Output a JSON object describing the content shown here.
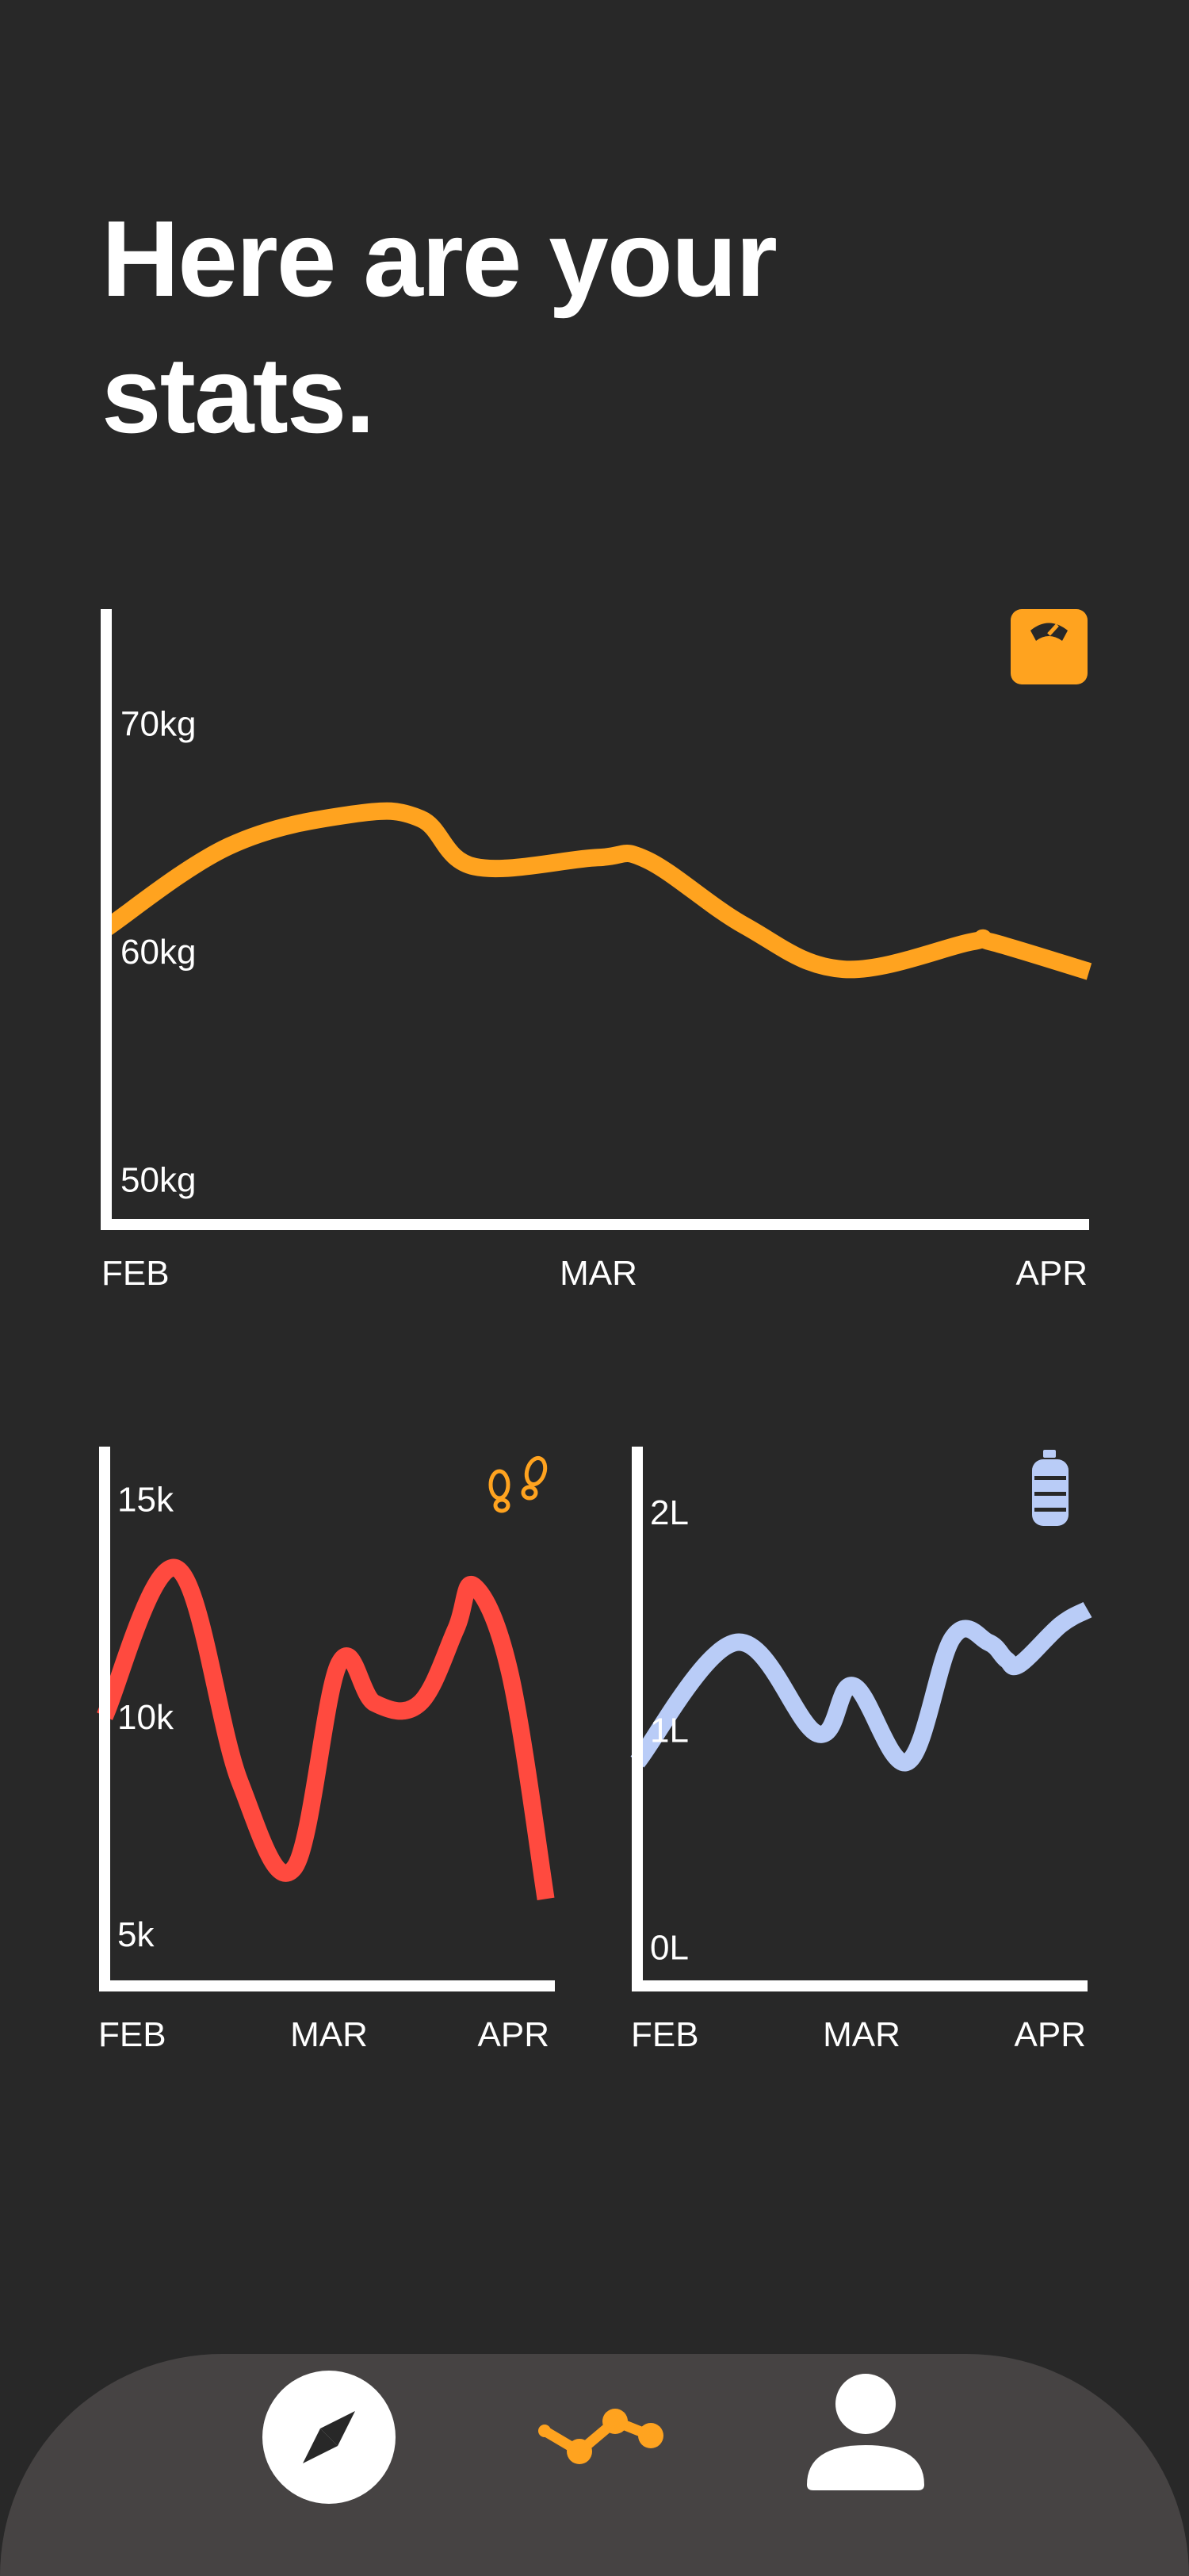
{
  "header": {
    "title": "Here are your\nstats."
  },
  "colors": {
    "background": "#282828",
    "tab_bar": "#464343",
    "weight": "#FFA31F",
    "steps": "#FF4A3F",
    "water": "#B9CCF7",
    "axis": "#FFFFFF",
    "active_tab": "#FFA31F"
  },
  "chart_data": [
    {
      "id": "weight",
      "type": "line",
      "icon": "weighing-scale-icon",
      "title": "",
      "x": [
        0,
        0.125,
        0.25,
        0.32,
        0.375,
        0.5,
        0.55,
        0.65,
        0.75,
        0.88,
        0.9,
        1.0
      ],
      "y": [
        61.0,
        64.6,
        66.0,
        65.8,
        63.7,
        64.1,
        64.0,
        61.1,
        59.2,
        60.4,
        60.4,
        59.1
      ],
      "xticks": [
        {
          "pos": 0,
          "label": "FEB"
        },
        {
          "pos": 0.5,
          "label": "MAR"
        },
        {
          "pos": 1,
          "label": "APR"
        }
      ],
      "yticks": [
        {
          "value": 50,
          "label": "50kg"
        },
        {
          "value": 60,
          "label": "60kg"
        },
        {
          "value": 70,
          "label": "70kg"
        }
      ],
      "ylim": [
        48,
        75
      ],
      "xlim": [
        0,
        1
      ]
    },
    {
      "id": "steps",
      "type": "line",
      "icon": "footprints-icon",
      "title": "",
      "x": [
        0,
        0.16,
        0.3,
        0.42,
        0.52,
        0.6,
        0.7,
        0.78,
        0.82,
        0.9,
        0.98
      ],
      "y": [
        10,
        13.4,
        8.5,
        6.5,
        11.2,
        10.3,
        10.3,
        12.0,
        13.0,
        11,
        5.8
      ],
      "xticks": [
        {
          "pos": 0,
          "label": "FEB"
        },
        {
          "pos": 0.5,
          "label": "MAR"
        },
        {
          "pos": 0.9,
          "label": "APR"
        }
      ],
      "yticks": [
        {
          "value": 5,
          "label": "5k"
        },
        {
          "value": 10,
          "label": "10k"
        },
        {
          "value": 15,
          "label": "15k"
        }
      ],
      "ylim": [
        3.8,
        16.2
      ],
      "xlim": [
        0,
        1
      ]
    },
    {
      "id": "water",
      "type": "line",
      "icon": "water-bottle-icon",
      "title": "",
      "x": [
        0,
        0.22,
        0.4,
        0.48,
        0.6,
        0.7,
        0.78,
        0.82,
        0.85,
        0.94,
        1.0
      ],
      "y": [
        0.85,
        1.4,
        0.98,
        1.2,
        0.85,
        1.42,
        1.4,
        1.32,
        1.3,
        1.48,
        1.55
      ],
      "xticks": [
        {
          "pos": 0,
          "label": "FEB"
        },
        {
          "pos": 0.5,
          "label": "MAR"
        },
        {
          "pos": 0.9,
          "label": "APR"
        }
      ],
      "yticks": [
        {
          "value": 0,
          "label": "0L"
        },
        {
          "value": 1,
          "label": "1L"
        },
        {
          "value": 2,
          "label": "2L"
        }
      ],
      "ylim": [
        -0.18,
        2.3
      ],
      "xlim": [
        0,
        1
      ]
    }
  ],
  "tab_bar": {
    "items": [
      {
        "name": "explore",
        "icon": "compass-icon"
      },
      {
        "name": "stats",
        "icon": "stats-graph-icon",
        "active": true
      },
      {
        "name": "profile",
        "icon": "person-icon"
      }
    ]
  }
}
